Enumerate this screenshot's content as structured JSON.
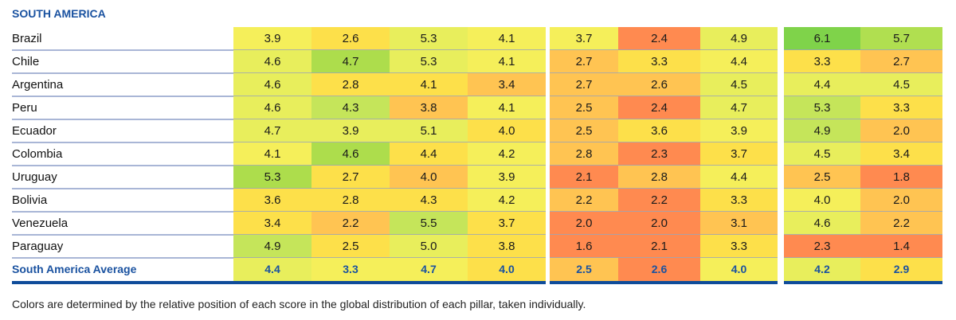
{
  "title": "SOUTH AMERICA",
  "footnote": "Colors are determined by the relative position of each score in the global distribution of each pillar, taken individually.",
  "colors": {
    "accent": "#1a52a0",
    "bar": "#0f4c9a"
  },
  "chart_data": {
    "type": "heatmap",
    "title": "SOUTH AMERICA",
    "groups": [
      4,
      3,
      2
    ],
    "rows": [
      {
        "name": "Brazil",
        "values": [
          3.9,
          2.6,
          5.3,
          4.1,
          3.7,
          2.4,
          4.9,
          6.1,
          5.7
        ]
      },
      {
        "name": "Chile",
        "values": [
          4.6,
          4.7,
          5.3,
          4.1,
          2.7,
          3.3,
          4.4,
          3.3,
          2.7
        ]
      },
      {
        "name": "Argentina",
        "values": [
          4.6,
          2.8,
          4.1,
          3.4,
          2.7,
          2.6,
          4.5,
          4.4,
          4.5
        ]
      },
      {
        "name": "Peru",
        "values": [
          4.6,
          4.3,
          3.8,
          4.1,
          2.5,
          2.4,
          4.7,
          5.3,
          3.3
        ]
      },
      {
        "name": "Ecuador",
        "values": [
          4.7,
          3.9,
          5.1,
          4.0,
          2.5,
          3.6,
          3.9,
          4.9,
          2.0
        ]
      },
      {
        "name": "Colombia",
        "values": [
          4.1,
          4.6,
          4.4,
          4.2,
          2.8,
          2.3,
          3.7,
          4.5,
          3.4
        ]
      },
      {
        "name": "Uruguay",
        "values": [
          5.3,
          2.7,
          4.0,
          3.9,
          2.1,
          2.8,
          4.4,
          2.5,
          1.8
        ]
      },
      {
        "name": "Bolivia",
        "values": [
          3.6,
          2.8,
          4.3,
          4.2,
          2.2,
          2.2,
          3.3,
          4.0,
          2.0
        ]
      },
      {
        "name": "Venezuela",
        "values": [
          3.4,
          2.2,
          5.5,
          3.7,
          2.0,
          2.0,
          3.1,
          4.6,
          2.2
        ]
      },
      {
        "name": "Paraguay",
        "values": [
          4.9,
          2.5,
          5.0,
          3.8,
          1.6,
          2.1,
          3.3,
          2.3,
          1.4
        ]
      }
    ],
    "average": {
      "name": "South America Average",
      "values": [
        4.4,
        3.3,
        4.7,
        4.0,
        2.5,
        2.6,
        4.0,
        4.2,
        2.9
      ]
    },
    "cell_colors": [
      [
        "#f5ef5a",
        "#fde04a",
        "#e8ee5c",
        "#f5ef5a",
        "#f5ef5a",
        "#ff8a50",
        "#e8ee5c",
        "#7fd34a",
        "#b0df50"
      ],
      [
        "#e8ee5c",
        "#addd4c",
        "#e8ee5c",
        "#f5ef5a",
        "#ffc452",
        "#fde04a",
        "#f5ef5a",
        "#fde04a",
        "#ffc452"
      ],
      [
        "#e8ee5c",
        "#fde04a",
        "#fde04a",
        "#ffc452",
        "#ffc452",
        "#ffc452",
        "#e8ee5c",
        "#e8ee5c",
        "#e8ee5c"
      ],
      [
        "#e8ee5c",
        "#c5e55a",
        "#ffc452",
        "#f5ef5a",
        "#ffc452",
        "#ff8a50",
        "#e8ee5c",
        "#c5e55a",
        "#fde04a"
      ],
      [
        "#e8ee5c",
        "#e8ee5c",
        "#e8ee5c",
        "#fde04a",
        "#ffc452",
        "#fde04a",
        "#f5ef5a",
        "#c5e55a",
        "#ffc452"
      ],
      [
        "#f5ef5a",
        "#addd4c",
        "#fde04a",
        "#f5ef5a",
        "#ffc452",
        "#ff8a50",
        "#fde04a",
        "#e8ee5c",
        "#fde04a"
      ],
      [
        "#addd4c",
        "#fde04a",
        "#ffc452",
        "#f5ef5a",
        "#ff8a50",
        "#ffc452",
        "#f5ef5a",
        "#ffc452",
        "#ff8a50"
      ],
      [
        "#fde04a",
        "#fde04a",
        "#fde04a",
        "#f5ef5a",
        "#ffc452",
        "#ff8a50",
        "#fde04a",
        "#f5ef5a",
        "#ffc452"
      ],
      [
        "#fde04a",
        "#ffc452",
        "#c5e55a",
        "#fde04a",
        "#ff8a50",
        "#ff8a50",
        "#ffc452",
        "#e8ee5c",
        "#ffc452"
      ],
      [
        "#c5e55a",
        "#fde04a",
        "#e8ee5c",
        "#fde04a",
        "#ff8a50",
        "#ff8a50",
        "#fde04a",
        "#ff8a50",
        "#ff8a50"
      ]
    ],
    "average_colors": [
      "#e8ee5c",
      "#f5ef5a",
      "#f5ef5a",
      "#fde04a",
      "#ffc452",
      "#ff8a50",
      "#f5ef5a",
      "#e8ee5c",
      "#fde04a"
    ]
  }
}
